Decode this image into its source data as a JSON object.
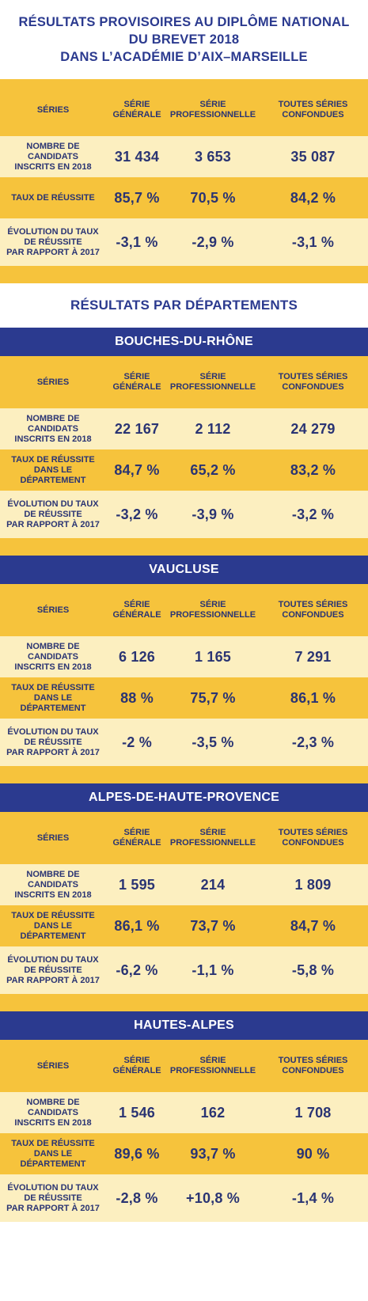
{
  "title": {
    "line1": "RÉSULTATS PROVISOIRES AU DIPLÔME NATIONAL",
    "line2": "DU BREVET 2018",
    "line3": "DANS L’ACADÉMIE D’AIX–MARSEILLE"
  },
  "columns": {
    "series": "SÉRIES",
    "generale": [
      "SÉRIE",
      "GÉNÉRALE"
    ],
    "pro": [
      "SÉRIE",
      "PROFESSIONNELLE"
    ],
    "all": [
      "TOUTES SÉRIES",
      "CONFONDUES"
    ]
  },
  "labels": {
    "candidats": [
      "NOMBRE DE CANDIDATS",
      "INSCRITS EN 2018"
    ],
    "taux_academie": [
      "TAUX DE RÉUSSITE"
    ],
    "taux_dept": [
      "TAUX DE RÉUSSITE",
      "DANS LE DÉPARTEMENT"
    ],
    "evolution": [
      "ÉVOLUTION DU TAUX",
      "DE RÉUSSITE",
      "PAR RAPPORT À 2017"
    ]
  },
  "academie": {
    "candidats": [
      "31 434",
      "3 653",
      "35 087"
    ],
    "taux": [
      "85,7 %",
      "70,5 %",
      "84,2 %"
    ],
    "evolution": [
      "-3,1 %",
      "-2,9 %",
      "-3,1 %"
    ]
  },
  "dept_section_title": "RÉSULTATS PAR DÉPARTEMENTS",
  "departments": [
    {
      "name": "BOUCHES-DU-RHÔNE",
      "candidats": [
        "22 167",
        "2 112",
        "24 279"
      ],
      "taux": [
        "84,7 %",
        "65,2 %",
        "83,2 %"
      ],
      "evolution": [
        "-3,2 %",
        "-3,9 %",
        "-3,2 %"
      ]
    },
    {
      "name": "VAUCLUSE",
      "candidats": [
        "6 126",
        "1 165",
        "7 291"
      ],
      "taux": [
        "88 %",
        "75,7 %",
        "86,1 %"
      ],
      "evolution": [
        "-2 %",
        "-3,5 %",
        "-2,3 %"
      ]
    },
    {
      "name": "ALPES-DE-HAUTE-PROVENCE",
      "candidats": [
        "1 595",
        "214",
        "1 809"
      ],
      "taux": [
        "86,1 %",
        "73,7 %",
        "84,7 %"
      ],
      "evolution": [
        "-6,2 %",
        "-1,1 %",
        "-5,8 %"
      ]
    },
    {
      "name": "HAUTES-ALPES",
      "candidats": [
        "1 546",
        "162",
        "1 708"
      ],
      "taux": [
        "89,6 %",
        "93,7 %",
        "90 %"
      ],
      "evolution": [
        "-2,8 %",
        "+10,8 %",
        "-1,4 %"
      ]
    }
  ],
  "colors": {
    "navy": "#2b3a8f",
    "gold": "#f6c33c",
    "cream": "#fcefc0"
  }
}
